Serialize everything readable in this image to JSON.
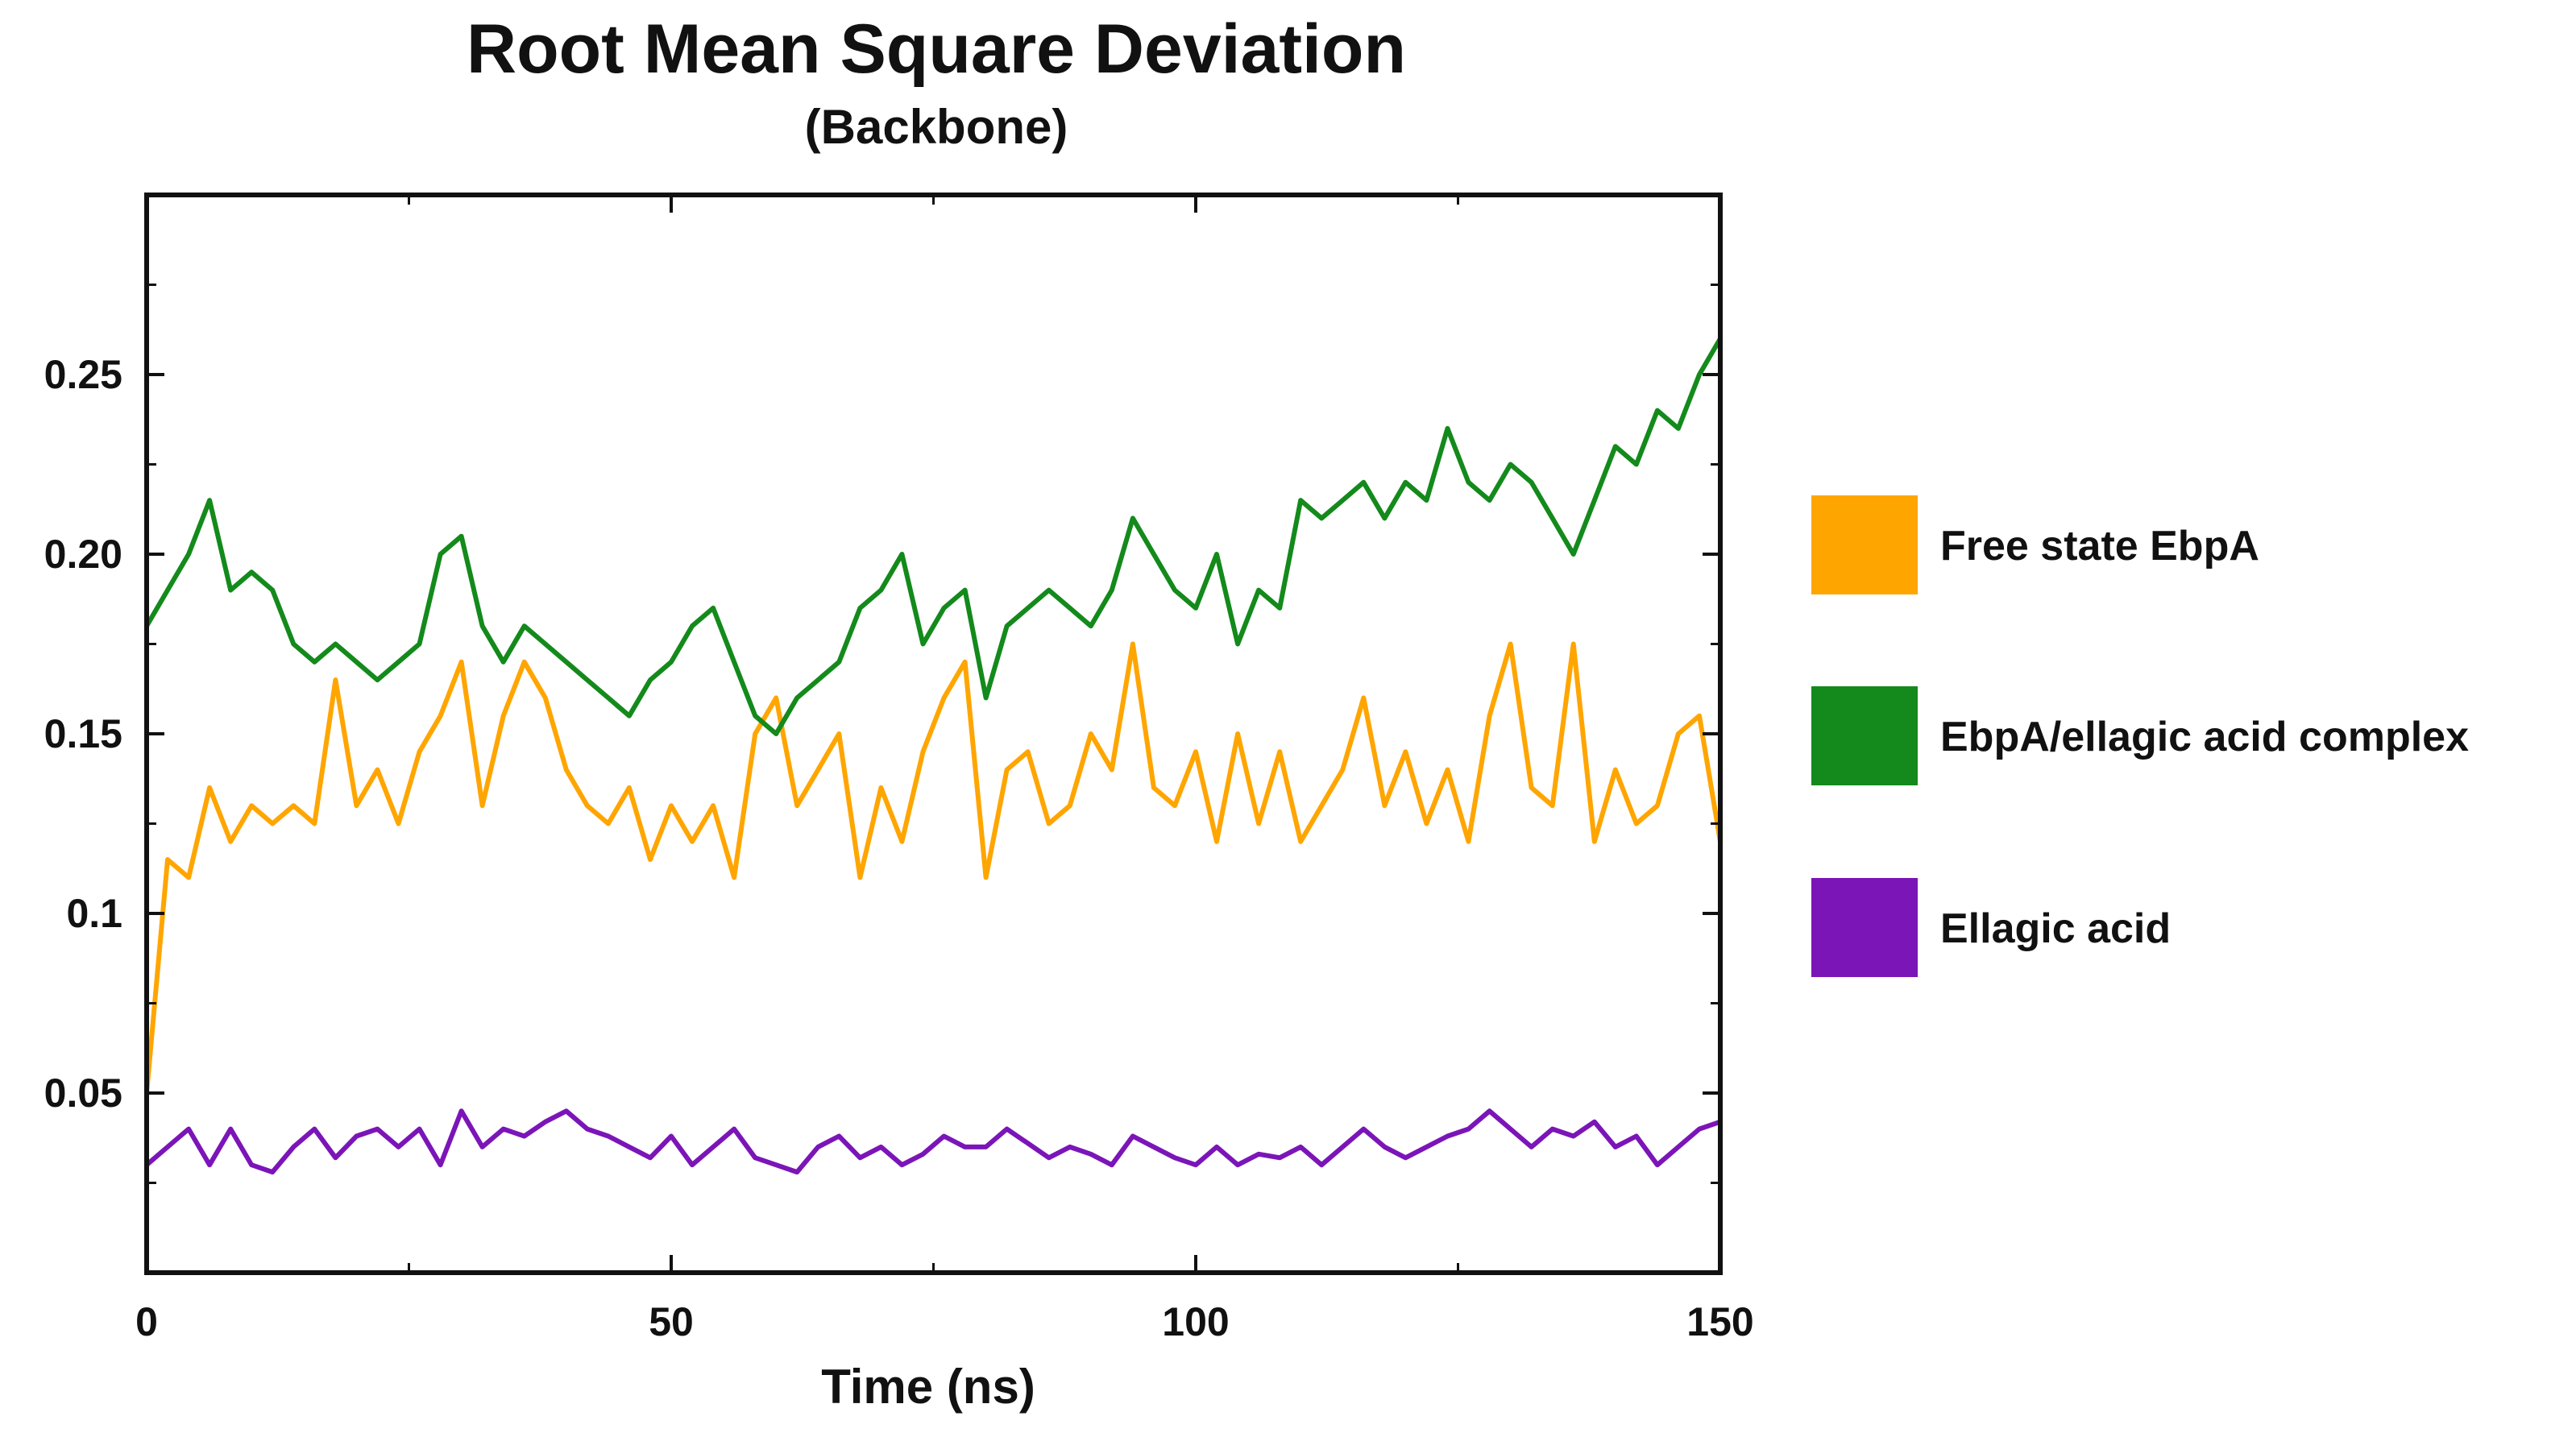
{
  "chart_data": {
    "type": "line",
    "title": "Root Mean Square Deviation",
    "subtitle": "(Backbone)",
    "xlabel": "Time (ns)",
    "ylabel": "",
    "xlim": [
      0,
      150
    ],
    "ylim": [
      0,
      0.3
    ],
    "x_ticks": [
      0,
      50,
      100,
      150
    ],
    "x_tick_labels": [
      "0",
      "50",
      "100",
      "150"
    ],
    "y_ticks": [
      0.05,
      0.1,
      0.15,
      0.2,
      0.25
    ],
    "y_tick_labels": [
      "0.05",
      "0.1",
      "0.15",
      "0.20",
      "0.25"
    ],
    "grid": false,
    "legend_position": "right",
    "x": [
      0,
      2,
      4,
      6,
      8,
      10,
      12,
      14,
      16,
      18,
      20,
      22,
      24,
      26,
      28,
      30,
      32,
      34,
      36,
      38,
      40,
      42,
      44,
      46,
      48,
      50,
      52,
      54,
      56,
      58,
      60,
      62,
      64,
      66,
      68,
      70,
      72,
      74,
      76,
      78,
      80,
      82,
      84,
      86,
      88,
      90,
      92,
      94,
      96,
      98,
      100,
      102,
      104,
      106,
      108,
      110,
      112,
      114,
      116,
      118,
      120,
      122,
      124,
      126,
      128,
      130,
      132,
      134,
      136,
      138,
      140,
      142,
      144,
      146,
      148,
      150
    ],
    "series": [
      {
        "name": "Free state EbpA",
        "color": "#FFA500",
        "values": [
          0.05,
          0.115,
          0.11,
          0.135,
          0.12,
          0.13,
          0.125,
          0.13,
          0.125,
          0.165,
          0.13,
          0.14,
          0.125,
          0.145,
          0.155,
          0.17,
          0.13,
          0.155,
          0.17,
          0.16,
          0.14,
          0.13,
          0.125,
          0.135,
          0.115,
          0.13,
          0.12,
          0.13,
          0.11,
          0.15,
          0.16,
          0.13,
          0.14,
          0.15,
          0.11,
          0.135,
          0.12,
          0.145,
          0.16,
          0.17,
          0.11,
          0.14,
          0.145,
          0.125,
          0.13,
          0.15,
          0.14,
          0.175,
          0.135,
          0.13,
          0.145,
          0.12,
          0.15,
          0.125,
          0.145,
          0.12,
          0.13,
          0.14,
          0.16,
          0.13,
          0.145,
          0.125,
          0.14,
          0.12,
          0.155,
          0.175,
          0.135,
          0.13,
          0.175,
          0.12,
          0.14,
          0.125,
          0.13,
          0.15,
          0.155,
          0.12
        ]
      },
      {
        "name": "EbpA/ellagic acid complex",
        "color": "#138A1B",
        "values": [
          0.18,
          0.19,
          0.2,
          0.215,
          0.19,
          0.195,
          0.19,
          0.175,
          0.17,
          0.175,
          0.17,
          0.165,
          0.17,
          0.175,
          0.2,
          0.205,
          0.18,
          0.17,
          0.18,
          0.175,
          0.17,
          0.165,
          0.16,
          0.155,
          0.165,
          0.17,
          0.18,
          0.185,
          0.17,
          0.155,
          0.15,
          0.16,
          0.165,
          0.17,
          0.185,
          0.19,
          0.2,
          0.175,
          0.185,
          0.19,
          0.16,
          0.18,
          0.185,
          0.19,
          0.185,
          0.18,
          0.19,
          0.21,
          0.2,
          0.19,
          0.185,
          0.2,
          0.175,
          0.19,
          0.185,
          0.215,
          0.21,
          0.215,
          0.22,
          0.21,
          0.22,
          0.215,
          0.235,
          0.22,
          0.215,
          0.225,
          0.22,
          0.21,
          0.2,
          0.215,
          0.23,
          0.225,
          0.24,
          0.235,
          0.25,
          0.26
        ]
      },
      {
        "name": "Ellagic acid",
        "color": "#7B15B8",
        "values": [
          0.03,
          0.035,
          0.04,
          0.03,
          0.04,
          0.03,
          0.028,
          0.035,
          0.04,
          0.032,
          0.038,
          0.04,
          0.035,
          0.04,
          0.03,
          0.045,
          0.035,
          0.04,
          0.038,
          0.042,
          0.045,
          0.04,
          0.038,
          0.035,
          0.032,
          0.038,
          0.03,
          0.035,
          0.04,
          0.032,
          0.03,
          0.028,
          0.035,
          0.038,
          0.032,
          0.035,
          0.03,
          0.033,
          0.038,
          0.035,
          0.035,
          0.04,
          0.036,
          0.032,
          0.035,
          0.033,
          0.03,
          0.038,
          0.035,
          0.032,
          0.03,
          0.035,
          0.03,
          0.033,
          0.032,
          0.035,
          0.03,
          0.035,
          0.04,
          0.035,
          0.032,
          0.035,
          0.038,
          0.04,
          0.045,
          0.04,
          0.035,
          0.04,
          0.038,
          0.042,
          0.035,
          0.038,
          0.03,
          0.035,
          0.04,
          0.042
        ]
      }
    ]
  }
}
